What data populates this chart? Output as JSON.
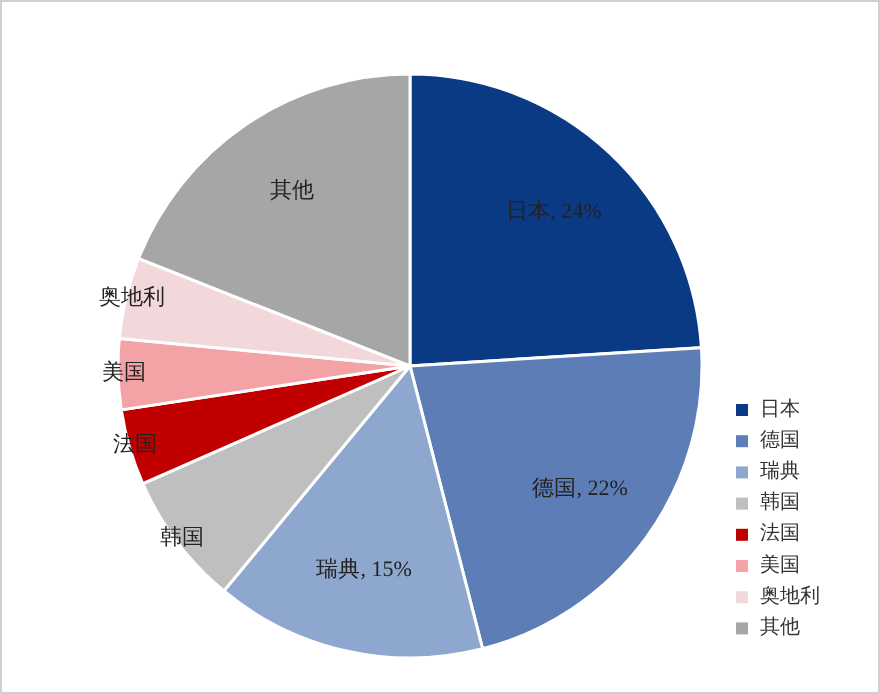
{
  "chart_data": {
    "type": "pie",
    "categories": [
      "日本",
      "德国",
      "瑞典",
      "韩国",
      "法国",
      "美国",
      "奥地利",
      "其他"
    ],
    "values": [
      24,
      22,
      15,
      7.4,
      4.2,
      3.9,
      4.5,
      19
    ],
    "value_labels": [
      "日本, 24%",
      "德国, 22%",
      "瑞典, 15%",
      "韩国",
      "法国",
      "美国",
      "奥地利",
      "其他"
    ],
    "colors": [
      "#0a3a84",
      "#5c7db6",
      "#8ea7cf",
      "#bfbfbf",
      "#c00000",
      "#f3a3a5",
      "#f2d8db",
      "#a6a6a6"
    ],
    "legend": "bottom right"
  }
}
